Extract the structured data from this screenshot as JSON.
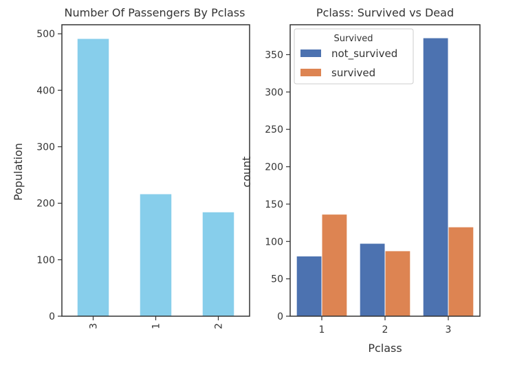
{
  "chart_data": [
    {
      "type": "bar",
      "title": "Number Of Passengers By Pclass",
      "xlabel": "",
      "ylabel": "Population",
      "categories": [
        "3",
        "1",
        "2"
      ],
      "values": [
        491,
        216,
        184
      ],
      "ylim": [
        0,
        516
      ],
      "yticks": [
        "0",
        "100",
        "200",
        "300",
        "400",
        "500"
      ],
      "color": "#87CEEB",
      "grid": false,
      "xtick_rotation": 90
    },
    {
      "type": "bar",
      "title": "Pclass: Survived vs Dead",
      "xlabel": "Pclass",
      "ylabel": "count",
      "categories": [
        "1",
        "2",
        "3"
      ],
      "series": [
        {
          "name": "not_survived",
          "values": [
            80,
            97,
            372
          ],
          "color": "#4C72B0"
        },
        {
          "name": "survived",
          "values": [
            136,
            87,
            119
          ],
          "color": "#DD8452"
        }
      ],
      "ylim": [
        0,
        390
      ],
      "yticks": [
        "0",
        "50",
        "100",
        "150",
        "200",
        "250",
        "300",
        "350"
      ],
      "legend": {
        "title": "Survived",
        "position": "top-left"
      },
      "grid": false
    }
  ]
}
